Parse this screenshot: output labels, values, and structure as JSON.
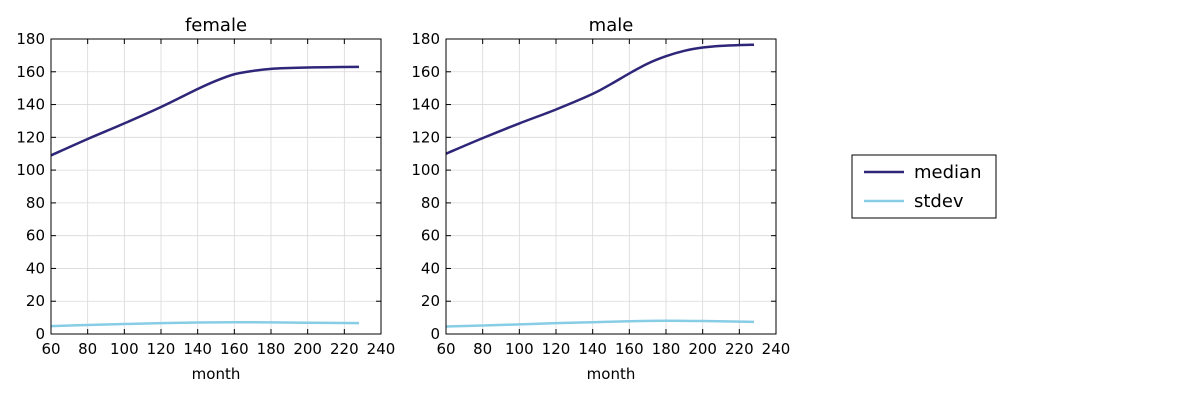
{
  "colors": {
    "median": "#2e2678",
    "stdev": "#87cde6",
    "grid": "#d9d9d9"
  },
  "legend": {
    "position": "right",
    "entries": [
      {
        "label": "median",
        "color": "#2e2678"
      },
      {
        "label": "stdev",
        "color": "#87cde6"
      }
    ]
  },
  "chart_data": [
    {
      "type": "line",
      "title": "female",
      "xlabel": "month",
      "ylabel": "",
      "xlim": [
        60,
        240
      ],
      "ylim": [
        0,
        180
      ],
      "xticks": [
        60,
        80,
        100,
        120,
        140,
        160,
        180,
        200,
        220,
        240
      ],
      "yticks": [
        0,
        20,
        40,
        60,
        80,
        100,
        120,
        140,
        160,
        180
      ],
      "grid": true,
      "series": [
        {
          "name": "median",
          "x": [
            60,
            80,
            100,
            120,
            140,
            150,
            160,
            170,
            180,
            190,
            200,
            210,
            228
          ],
          "y": [
            109,
            119,
            128.5,
            138.5,
            149.5,
            154.5,
            158.5,
            160.5,
            161.8,
            162.3,
            162.6,
            162.8,
            163
          ]
        },
        {
          "name": "stdev",
          "x": [
            60,
            80,
            100,
            120,
            140,
            160,
            180,
            200,
            228
          ],
          "y": [
            4.8,
            5.5,
            6.1,
            6.6,
            7.0,
            7.2,
            7.1,
            6.9,
            6.6
          ]
        }
      ]
    },
    {
      "type": "line",
      "title": "male",
      "xlabel": "month",
      "ylabel": "",
      "xlim": [
        60,
        240
      ],
      "ylim": [
        0,
        180
      ],
      "xticks": [
        60,
        80,
        100,
        120,
        140,
        160,
        180,
        200,
        220,
        240
      ],
      "yticks": [
        0,
        20,
        40,
        60,
        80,
        100,
        120,
        140,
        160,
        180
      ],
      "grid": true,
      "series": [
        {
          "name": "median",
          "x": [
            60,
            80,
            100,
            120,
            140,
            150,
            160,
            170,
            180,
            190,
            200,
            210,
            220,
            228
          ],
          "y": [
            110,
            119.5,
            128.5,
            137,
            146.5,
            152.5,
            159,
            165,
            169.5,
            172.8,
            174.8,
            175.8,
            176.3,
            176.5
          ]
        },
        {
          "name": "stdev",
          "x": [
            60,
            80,
            100,
            120,
            140,
            160,
            180,
            200,
            228
          ],
          "y": [
            4.6,
            5.2,
            5.9,
            6.6,
            7.2,
            7.8,
            8.1,
            7.9,
            7.4
          ]
        }
      ]
    }
  ]
}
